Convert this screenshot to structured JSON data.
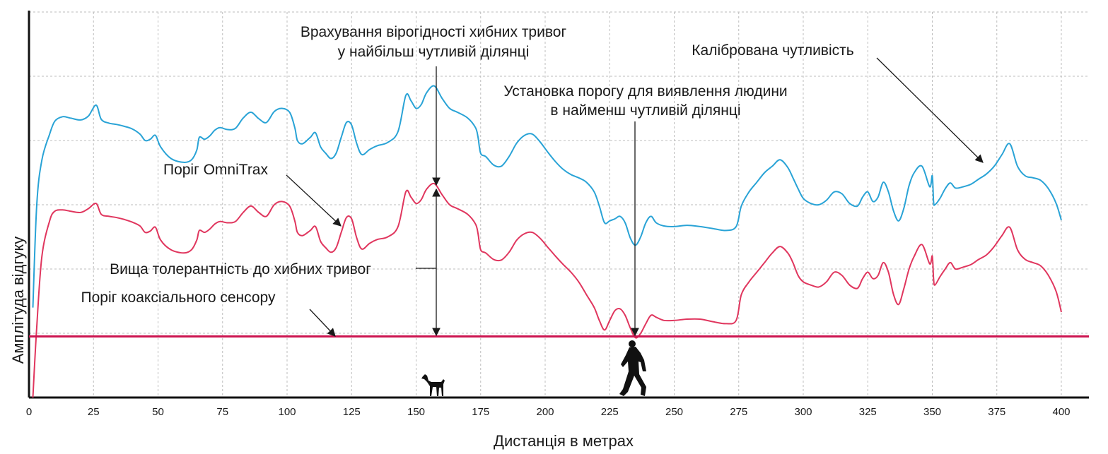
{
  "chart_data": {
    "type": "line",
    "xlabel": "Дистанція в метрах",
    "ylabel": "Амплітуда відгуку",
    "xlim": [
      0,
      400
    ],
    "ylim": [
      0,
      6
    ],
    "grid": true,
    "x_ticks": [
      0,
      25,
      50,
      75,
      100,
      125,
      150,
      175,
      200,
      225,
      250,
      275,
      300,
      325,
      350,
      375,
      400
    ],
    "colors": {
      "calibrated": "#29a3d6",
      "omnitrax": "#e0365e",
      "coax": "#cc1450",
      "grid": "#bdbdbd",
      "annotation": "#1a1a1a"
    },
    "series": [
      {
        "key": "calibrated",
        "x": [
          1.5,
          3,
          5,
          8,
          10,
          13,
          16,
          20,
          23,
          26,
          28,
          31,
          34,
          37,
          40,
          43,
          45,
          47,
          49,
          51,
          55,
          60,
          63,
          65,
          66,
          68,
          70,
          72,
          74,
          77,
          80,
          83,
          86,
          89,
          92,
          95,
          98,
          101,
          103,
          104,
          106,
          109,
          111,
          113,
          115,
          117,
          119,
          121,
          123,
          125,
          127,
          129,
          132,
          135,
          139,
          143,
          146,
          148,
          150,
          152,
          154,
          157,
          160,
          163,
          166,
          170,
          173,
          174,
          175,
          177,
          180,
          183,
          186,
          189,
          192,
          195,
          198,
          201,
          204,
          207,
          210,
          213,
          216,
          219,
          221,
          223,
          225,
          227,
          229,
          231,
          233,
          235,
          237,
          239,
          241,
          243,
          246,
          250,
          255,
          260,
          265,
          270,
          274,
          276,
          279,
          282,
          285,
          288,
          291,
          294,
          296,
          298,
          300,
          303,
          306,
          309,
          312,
          315,
          318,
          321,
          323,
          325,
          327,
          329,
          331,
          333,
          335,
          337,
          339,
          341,
          343,
          346,
          349,
          350,
          350.5,
          351,
          353,
          355,
          357,
          359,
          362,
          365,
          368,
          371,
          374,
          377,
          380,
          383,
          386,
          389,
          392,
          395,
          398,
          400
        ],
        "values": [
          1.4,
          3.0,
          3.7,
          4.1,
          4.3,
          4.37,
          4.35,
          4.32,
          4.38,
          4.55,
          4.33,
          4.27,
          4.25,
          4.22,
          4.18,
          4.1,
          4.0,
          4.02,
          4.08,
          3.9,
          3.72,
          3.66,
          3.7,
          3.85,
          4.05,
          4.02,
          4.07,
          4.16,
          4.2,
          4.17,
          4.19,
          4.35,
          4.44,
          4.34,
          4.28,
          4.45,
          4.5,
          4.44,
          4.2,
          4.0,
          3.95,
          4.05,
          4.12,
          3.9,
          3.8,
          3.72,
          3.8,
          4.05,
          4.28,
          4.24,
          3.95,
          3.78,
          3.86,
          3.92,
          3.97,
          4.14,
          4.7,
          4.62,
          4.5,
          4.56,
          4.74,
          4.85,
          4.66,
          4.5,
          4.44,
          4.35,
          4.2,
          4.05,
          3.8,
          3.75,
          3.62,
          3.6,
          3.75,
          3.96,
          4.08,
          4.1,
          3.98,
          3.82,
          3.67,
          3.55,
          3.47,
          3.42,
          3.35,
          3.2,
          2.98,
          2.72,
          2.75,
          2.78,
          2.82,
          2.72,
          2.48,
          2.37,
          2.5,
          2.72,
          2.82,
          2.72,
          2.67,
          2.66,
          2.68,
          2.66,
          2.63,
          2.6,
          2.66,
          2.98,
          3.2,
          3.35,
          3.5,
          3.6,
          3.7,
          3.58,
          3.42,
          3.25,
          3.1,
          3.02,
          3.0,
          3.07,
          3.2,
          3.17,
          3.02,
          2.98,
          3.12,
          3.2,
          3.05,
          3.12,
          3.35,
          3.2,
          2.9,
          2.75,
          2.95,
          3.3,
          3.5,
          3.6,
          3.28,
          3.45,
          3.05,
          3.0,
          3.1,
          3.25,
          3.34,
          3.26,
          3.28,
          3.32,
          3.4,
          3.48,
          3.6,
          3.78,
          3.95,
          3.6,
          3.45,
          3.42,
          3.38,
          3.25,
          3.02,
          2.76
        ],
        "line_width": 2
      },
      {
        "key": "omnitrax",
        "x": [
          1.5,
          3,
          5,
          8,
          10,
          13,
          16,
          20,
          23,
          26,
          28,
          31,
          34,
          37,
          40,
          43,
          45,
          47,
          49,
          51,
          55,
          60,
          63,
          65,
          66,
          68,
          70,
          72,
          74,
          77,
          80,
          83,
          86,
          89,
          92,
          95,
          98,
          101,
          103,
          104,
          106,
          109,
          111,
          113,
          115,
          117,
          119,
          121,
          123,
          125,
          127,
          129,
          132,
          135,
          139,
          143,
          146,
          148,
          150,
          152,
          154,
          157,
          160,
          163,
          166,
          170,
          173,
          174,
          175,
          177,
          180,
          183,
          186,
          189,
          192,
          195,
          198,
          201,
          204,
          207,
          210,
          213,
          216,
          219,
          221,
          223,
          225,
          227,
          229,
          231,
          233,
          235,
          237,
          239,
          241,
          243,
          246,
          250,
          255,
          260,
          265,
          270,
          274,
          276,
          279,
          282,
          285,
          288,
          291,
          294,
          296,
          298,
          300,
          303,
          306,
          309,
          312,
          315,
          318,
          321,
          323,
          325,
          327,
          329,
          331,
          333,
          335,
          337,
          339,
          341,
          343,
          346,
          349,
          350,
          350.5,
          351,
          353,
          355,
          357,
          359,
          362,
          365,
          368,
          371,
          374,
          377,
          380,
          383,
          386,
          389,
          392,
          395,
          398,
          400
        ],
        "values": [
          0.0,
          1.1,
          2.2,
          2.75,
          2.9,
          2.92,
          2.9,
          2.88,
          2.94,
          3.02,
          2.85,
          2.82,
          2.8,
          2.77,
          2.73,
          2.67,
          2.57,
          2.59,
          2.65,
          2.45,
          2.3,
          2.25,
          2.3,
          2.45,
          2.6,
          2.57,
          2.62,
          2.7,
          2.74,
          2.72,
          2.74,
          2.88,
          2.98,
          2.88,
          2.82,
          3.0,
          3.05,
          2.98,
          2.75,
          2.57,
          2.52,
          2.6,
          2.66,
          2.43,
          2.33,
          2.26,
          2.33,
          2.57,
          2.8,
          2.78,
          2.48,
          2.31,
          2.4,
          2.46,
          2.5,
          2.66,
          3.2,
          3.12,
          3.02,
          3.08,
          3.24,
          3.33,
          3.16,
          3.0,
          2.94,
          2.85,
          2.7,
          2.55,
          2.3,
          2.25,
          2.15,
          2.14,
          2.26,
          2.45,
          2.55,
          2.57,
          2.48,
          2.34,
          2.2,
          2.07,
          1.95,
          1.8,
          1.6,
          1.4,
          1.2,
          1.05,
          1.2,
          1.35,
          1.38,
          1.28,
          1.08,
          0.93,
          1.0,
          1.15,
          1.28,
          1.25,
          1.2,
          1.2,
          1.22,
          1.22,
          1.18,
          1.15,
          1.2,
          1.6,
          1.8,
          1.95,
          2.1,
          2.25,
          2.35,
          2.25,
          2.1,
          1.9,
          1.8,
          1.75,
          1.72,
          1.8,
          1.95,
          1.9,
          1.75,
          1.7,
          1.85,
          1.95,
          1.85,
          1.9,
          2.1,
          1.95,
          1.6,
          1.45,
          1.7,
          2.0,
          2.2,
          2.38,
          2.08,
          2.2,
          1.85,
          1.75,
          1.88,
          2.0,
          2.1,
          2.0,
          2.03,
          2.07,
          2.15,
          2.22,
          2.35,
          2.52,
          2.65,
          2.3,
          2.15,
          2.1,
          2.05,
          1.9,
          1.65,
          1.33
        ],
        "line_width": 2
      },
      {
        "key": "coax",
        "x": [
          0,
          400
        ],
        "values": [
          0.95,
          0.95
        ],
        "line_width": 3
      }
    ],
    "annotations": [
      {
        "lines": [
          "Врахування вірогідності хибних тривог",
          "у найбільш чутливій ділянці"
        ]
      },
      {
        "lines": [
          "Калібрована чутливість"
        ]
      },
      {
        "lines": [
          "Установка порогу для виявлення людини",
          "в найменш чутливій ділянці"
        ]
      },
      {
        "lines": [
          "Поріг OmniTrax"
        ]
      },
      {
        "lines": [
          "Вища толерантність до хибних тривог"
        ]
      },
      {
        "lines": [
          "Поріг коаксіального сенсору"
        ]
      }
    ],
    "markers": [
      {
        "icon": "dog-icon",
        "x": 155
      },
      {
        "icon": "walking-person-icon",
        "x": 234
      }
    ]
  }
}
